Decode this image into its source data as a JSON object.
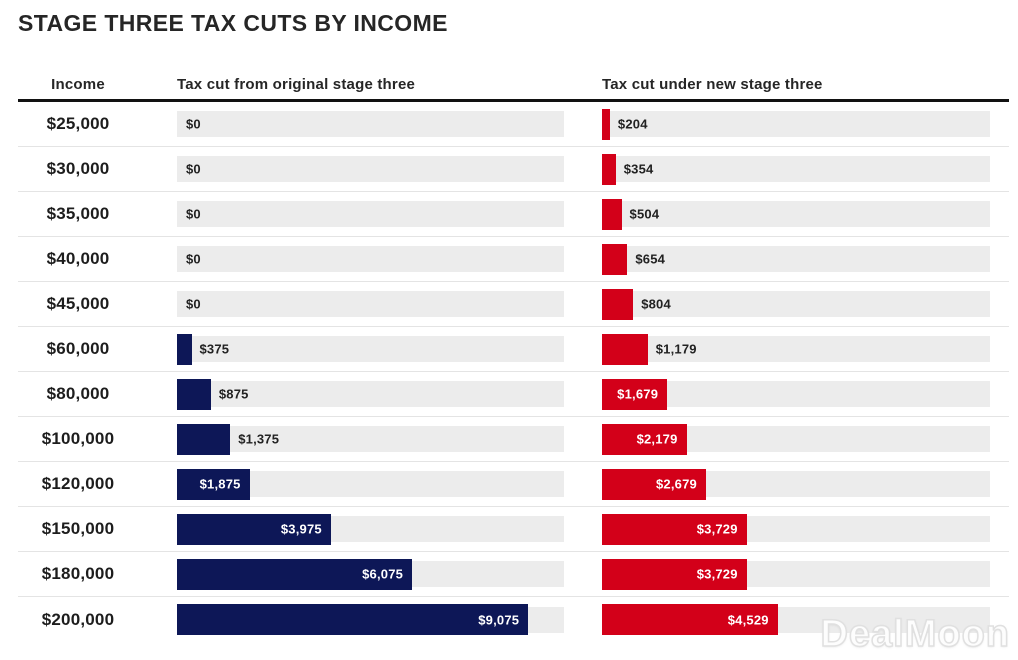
{
  "title": "STAGE THREE TAX CUTS BY INCOME",
  "watermark": "DealMoon",
  "chart_data": {
    "type": "bar",
    "orientation": "horizontal",
    "columns": [
      "Income",
      "Tax cut from original stage three",
      "Tax cut under new stage three"
    ],
    "categories": [
      "$25,000",
      "$30,000",
      "$35,000",
      "$40,000",
      "$45,000",
      "$60,000",
      "$80,000",
      "$100,000",
      "$120,000",
      "$150,000",
      "$180,000",
      "$200,000"
    ],
    "series": [
      {
        "name": "Tax cut from original stage three",
        "color": "#0d1757",
        "values": [
          0,
          0,
          0,
          0,
          0,
          375,
          875,
          1375,
          1875,
          3975,
          6075,
          9075
        ]
      },
      {
        "name": "Tax cut under new stage three",
        "color": "#d30019",
        "values": [
          204,
          354,
          504,
          654,
          804,
          1179,
          1679,
          2179,
          2679,
          3729,
          3729,
          4529
        ]
      }
    ],
    "xlim": [
      0,
      10000
    ],
    "value_prefix": "$",
    "track_color": "#ececec",
    "grid": false,
    "legend": false,
    "value_labels": "shown at end of each bar; white inside bar when bar is long enough, dark outside otherwise"
  }
}
